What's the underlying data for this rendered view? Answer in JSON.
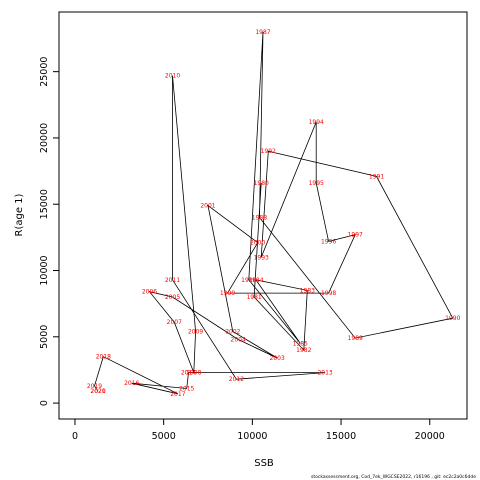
{
  "chart_data": {
    "type": "line",
    "xlabel": "SSB",
    "ylabel": "R(age 1)",
    "xlim": [
      -900,
      22100
    ],
    "ylim": [
      -1200,
      29500
    ],
    "xticks": [
      0,
      5000,
      10000,
      15000,
      20000
    ],
    "yticks": [
      0,
      5000,
      10000,
      15000,
      20000,
      25000
    ],
    "line_color": "#000000",
    "label_color": "#ff0000",
    "points": [
      {
        "year": "1980",
        "ssb": 10500,
        "r": 16600
      },
      {
        "year": "1981",
        "ssb": 10100,
        "r": 8000
      },
      {
        "year": "1982",
        "ssb": 12900,
        "r": 4000
      },
      {
        "year": "1983",
        "ssb": 13100,
        "r": 8500
      },
      {
        "year": "1984",
        "ssb": 10200,
        "r": 9300
      },
      {
        "year": "1985",
        "ssb": 12700,
        "r": 4500
      },
      {
        "year": "1986",
        "ssb": 9800,
        "r": 9300
      },
      {
        "year": "1987",
        "ssb": 10600,
        "r": 28000
      },
      {
        "year": "1988",
        "ssb": 10400,
        "r": 14000
      },
      {
        "year": "1989",
        "ssb": 15800,
        "r": 4900
      },
      {
        "year": "1990",
        "ssb": 21300,
        "r": 6400
      },
      {
        "year": "1991",
        "ssb": 17000,
        "r": 17100
      },
      {
        "year": "1992",
        "ssb": 10900,
        "r": 19000
      },
      {
        "year": "1993",
        "ssb": 10500,
        "r": 11000
      },
      {
        "year": "1994",
        "ssb": 13600,
        "r": 21200
      },
      {
        "year": "1995",
        "ssb": 13600,
        "r": 16600
      },
      {
        "year": "1996",
        "ssb": 14300,
        "r": 12200
      },
      {
        "year": "1997",
        "ssb": 15800,
        "r": 12700
      },
      {
        "year": "1998",
        "ssb": 14300,
        "r": 8300
      },
      {
        "year": "1999",
        "ssb": 8600,
        "r": 8300
      },
      {
        "year": "2000",
        "ssb": 10300,
        "r": 12100
      },
      {
        "year": "2001",
        "ssb": 7500,
        "r": 14900
      },
      {
        "year": "2002",
        "ssb": 8900,
        "r": 5400
      },
      {
        "year": "2003",
        "ssb": 11400,
        "r": 3400
      },
      {
        "year": "2004",
        "ssb": 9200,
        "r": 4800
      },
      {
        "year": "2005",
        "ssb": 5500,
        "r": 8000
      },
      {
        "year": "2006",
        "ssb": 4200,
        "r": 8400
      },
      {
        "year": "2007",
        "ssb": 5600,
        "r": 6100
      },
      {
        "year": "2008",
        "ssb": 6700,
        "r": 2300
      },
      {
        "year": "2009",
        "ssb": 6800,
        "r": 5400
      },
      {
        "year": "2010",
        "ssb": 5500,
        "r": 24700
      },
      {
        "year": "2011",
        "ssb": 5500,
        "r": 9300
      },
      {
        "year": "2012",
        "ssb": 9100,
        "r": 1800
      },
      {
        "year": "2013",
        "ssb": 14100,
        "r": 2300
      },
      {
        "year": "2014",
        "ssb": 6400,
        "r": 2300
      },
      {
        "year": "2015",
        "ssb": 6300,
        "r": 1100
      },
      {
        "year": "2016",
        "ssb": 3200,
        "r": 1500
      },
      {
        "year": "2017",
        "ssb": 5800,
        "r": 700
      },
      {
        "year": "2018",
        "ssb": 1600,
        "r": 3500
      },
      {
        "year": "2019",
        "ssb": 1100,
        "r": 1300
      },
      {
        "year": "2020",
        "ssb": 1300,
        "r": 900
      },
      {
        "year": "2021",
        "ssb": 1300,
        "r": 900
      }
    ]
  },
  "footer": {
    "text": "stockassessment.org,  Cod_7ek_WGCSE2022,  r16196  ,  git:  ec2c2a0c6dde"
  }
}
